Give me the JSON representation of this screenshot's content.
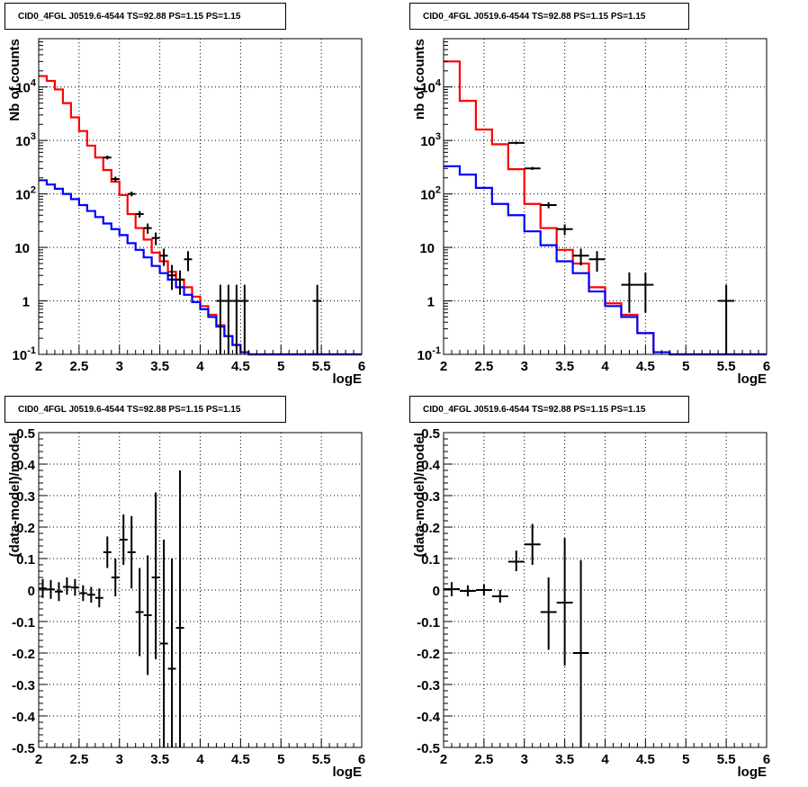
{
  "panels": [
    {
      "id": "tl",
      "title": "CID0_4FGL J0519.6-4544 TS=92.88 PS=1.15 PS=1.15"
    },
    {
      "id": "tr",
      "title": "CID0_4FGL J0519.6-4544 TS=92.88 PS=1.15 PS=1.15"
    },
    {
      "id": "bl",
      "title": "CID0_4FGL J0519.6-4544 TS=92.88 PS=1.15 PS=1.15"
    },
    {
      "id": "br",
      "title": "CID0_4FGL J0519.6-4544 TS=92.88 PS=1.15 PS=1.15"
    }
  ],
  "chart_data": [
    {
      "type": "line",
      "title": "CID0_4FGL J0519.6-4544 TS=92.88 PS=1.15 PS=1.15",
      "xlabel": "logE",
      "ylabel": "Nb of counts",
      "xlim": [
        2,
        6
      ],
      "ylim": [
        0.1,
        80000
      ],
      "yscale": "log",
      "grid": true,
      "xticks": [
        "2",
        "2.5",
        "3",
        "3.5",
        "4",
        "4.5",
        "5",
        "5.5",
        "6"
      ],
      "yticks": [
        "10^-1",
        "1",
        "10",
        "10^2",
        "10^3",
        "10^4"
      ],
      "bin_edges": [
        2.0,
        2.1,
        2.2,
        2.3,
        2.4,
        2.5,
        2.6,
        2.7,
        2.8,
        2.9,
        3.0,
        3.1,
        3.2,
        3.3,
        3.4,
        3.5,
        3.6,
        3.7,
        3.8,
        3.9,
        4.0,
        4.1,
        4.2,
        4.3,
        4.4,
        4.5,
        4.6,
        4.7,
        4.8,
        4.9,
        5.0,
        5.1,
        5.2,
        5.3,
        5.4,
        5.5,
        5.6,
        5.7,
        5.8,
        5.9,
        6.0
      ],
      "series": [
        {
          "color": "#ff0000",
          "values": [
            16000,
            13000,
            9000,
            5000,
            2700,
            1500,
            800,
            480,
            280,
            170,
            95,
            42,
            23,
            14,
            8,
            5.5,
            3.5,
            2.5,
            1.8,
            1.2,
            0.8,
            0.55,
            0.35,
            0.22,
            0.15,
            0.11,
            0.1,
            0.1,
            0.1,
            0.1,
            0.1,
            0.1,
            0.1,
            0.1,
            0.1,
            0.1,
            0.1,
            0.1,
            0.1,
            0.1
          ]
        },
        {
          "color": "#0000ff",
          "values": [
            180,
            150,
            125,
            100,
            80,
            62,
            48,
            37,
            28,
            22,
            17,
            12,
            9,
            6.5,
            4.5,
            3.3,
            2.5,
            1.8,
            1.3,
            0.95,
            0.7,
            0.5,
            0.33,
            0.22,
            0.15,
            0.11,
            0.1,
            0.1,
            0.1,
            0.1,
            0.1,
            0.1,
            0.1,
            0.1,
            0.1,
            0.1,
            0.1,
            0.1,
            0.1,
            0.1
          ]
        }
      ],
      "points": [
        {
          "x": 2.85,
          "y": 480,
          "ylo": 440,
          "yhi": 520,
          "xerr": 0.05
        },
        {
          "x": 2.95,
          "y": 190,
          "ylo": 170,
          "yhi": 210,
          "xerr": 0.05
        },
        {
          "x": 3.15,
          "y": 100,
          "ylo": 90,
          "yhi": 110,
          "xerr": 0.05
        },
        {
          "x": 3.25,
          "y": 42,
          "ylo": 36,
          "yhi": 48,
          "xerr": 0.05
        },
        {
          "x": 3.35,
          "y": 23,
          "ylo": 18,
          "yhi": 28,
          "xerr": 0.05
        },
        {
          "x": 3.45,
          "y": 15,
          "ylo": 11,
          "yhi": 19,
          "xerr": 0.05
        },
        {
          "x": 3.55,
          "y": 7,
          "ylo": 4.5,
          "yhi": 9.5,
          "xerr": 0.05
        },
        {
          "x": 3.65,
          "y": 3,
          "ylo": 1.6,
          "yhi": 4.7,
          "xerr": 0.05
        },
        {
          "x": 3.75,
          "y": 2.5,
          "ylo": 1.3,
          "yhi": 3.7,
          "xerr": 0.05
        },
        {
          "x": 3.85,
          "y": 6,
          "ylo": 3.6,
          "yhi": 8.5,
          "xerr": 0.05
        },
        {
          "x": 4.25,
          "y": 1,
          "ylo": 0.1,
          "yhi": 2.0,
          "xerr": 0.05
        },
        {
          "x": 4.35,
          "y": 1,
          "ylo": 0.1,
          "yhi": 2.0,
          "xerr": 0.05
        },
        {
          "x": 4.45,
          "y": 1,
          "ylo": 0.1,
          "yhi": 2.0,
          "xerr": 0.05
        },
        {
          "x": 4.55,
          "y": 1,
          "ylo": 0.1,
          "yhi": 2.0,
          "xerr": 0.05
        },
        {
          "x": 5.45,
          "y": 1,
          "ylo": 0.1,
          "yhi": 2.0,
          "xerr": 0.05
        }
      ]
    },
    {
      "type": "line",
      "title": "CID0_4FGL J0519.6-4544 TS=92.88 PS=1.15 PS=1.15",
      "xlabel": "logE",
      "ylabel": "nb of counts",
      "xlim": [
        2,
        6
      ],
      "ylim": [
        0.1,
        80000
      ],
      "yscale": "log",
      "grid": true,
      "xticks": [
        "2",
        "2.5",
        "3",
        "3.5",
        "4",
        "4.5",
        "5",
        "5.5",
        "6"
      ],
      "yticks": [
        "10^-1",
        "1",
        "10",
        "10^2",
        "10^3",
        "10^4"
      ],
      "bin_edges": [
        2.0,
        2.2,
        2.4,
        2.6,
        2.8,
        3.0,
        3.2,
        3.4,
        3.6,
        3.8,
        4.0,
        4.2,
        4.4,
        4.6,
        4.8,
        5.0,
        5.2,
        5.4,
        5.6,
        5.8,
        6.0
      ],
      "series": [
        {
          "color": "#ff0000",
          "values": [
            30000,
            5500,
            1600,
            850,
            290,
            65,
            23,
            9,
            5,
            1.8,
            0.9,
            0.55,
            0.25,
            0.11,
            0.1,
            0.1,
            0.1,
            0.1,
            0.1,
            0.1
          ]
        },
        {
          "color": "#0000ff",
          "values": [
            330,
            230,
            130,
            65,
            40,
            20,
            11,
            5.5,
            3.3,
            1.5,
            0.8,
            0.5,
            0.25,
            0.11,
            0.1,
            0.1,
            0.1,
            0.1,
            0.1,
            0.1
          ]
        }
      ],
      "points": [
        {
          "x": 2.9,
          "y": 900,
          "ylo": 850,
          "yhi": 950,
          "xerr": 0.1
        },
        {
          "x": 3.1,
          "y": 300,
          "ylo": 280,
          "yhi": 320,
          "xerr": 0.1
        },
        {
          "x": 3.3,
          "y": 62,
          "ylo": 54,
          "yhi": 70,
          "xerr": 0.1
        },
        {
          "x": 3.5,
          "y": 22,
          "ylo": 17,
          "yhi": 27,
          "xerr": 0.1
        },
        {
          "x": 3.7,
          "y": 7,
          "ylo": 4.6,
          "yhi": 9.5,
          "xerr": 0.1
        },
        {
          "x": 3.9,
          "y": 6,
          "ylo": 3.5,
          "yhi": 8.5,
          "xerr": 0.1
        },
        {
          "x": 4.3,
          "y": 2,
          "ylo": 0.6,
          "yhi": 3.4,
          "xerr": 0.1
        },
        {
          "x": 4.5,
          "y": 2,
          "ylo": 0.6,
          "yhi": 3.4,
          "xerr": 0.1
        },
        {
          "x": 5.5,
          "y": 1,
          "ylo": 0.1,
          "yhi": 2.0,
          "xerr": 0.1
        }
      ]
    },
    {
      "type": "scatter",
      "title": "CID0_4FGL J0519.6-4544 TS=92.88 PS=1.15 PS=1.15",
      "xlabel": "logE",
      "ylabel": "(data-model)/model",
      "xlim": [
        2,
        6
      ],
      "ylim": [
        -0.5,
        0.5
      ],
      "grid": true,
      "xticks": [
        "2",
        "2.5",
        "3",
        "3.5",
        "4",
        "4.5",
        "5",
        "5.5",
        "6"
      ],
      "yticks": [
        "-0.5",
        "-0.4",
        "-0.3",
        "-0.2",
        "-0.1",
        "0",
        "0.1",
        "0.2",
        "0.3",
        "0.4",
        "0.5"
      ],
      "points": [
        {
          "x": 2.05,
          "y": 0.005,
          "ylo": -0.025,
          "yhi": 0.035,
          "xerr": 0.05
        },
        {
          "x": 2.15,
          "y": 0.002,
          "ylo": -0.028,
          "yhi": 0.032,
          "xerr": 0.05
        },
        {
          "x": 2.25,
          "y": -0.005,
          "ylo": -0.035,
          "yhi": 0.025,
          "xerr": 0.05
        },
        {
          "x": 2.35,
          "y": 0.01,
          "ylo": -0.015,
          "yhi": 0.04,
          "xerr": 0.05
        },
        {
          "x": 2.45,
          "y": 0.008,
          "ylo": -0.018,
          "yhi": 0.035,
          "xerr": 0.05
        },
        {
          "x": 2.55,
          "y": -0.01,
          "ylo": -0.035,
          "yhi": 0.015,
          "xerr": 0.05
        },
        {
          "x": 2.65,
          "y": -0.015,
          "ylo": -0.04,
          "yhi": 0.01,
          "xerr": 0.05
        },
        {
          "x": 2.75,
          "y": -0.025,
          "ylo": -0.055,
          "yhi": 0.005,
          "xerr": 0.05
        },
        {
          "x": 2.85,
          "y": 0.12,
          "ylo": 0.07,
          "yhi": 0.17,
          "xerr": 0.05
        },
        {
          "x": 2.95,
          "y": 0.04,
          "ylo": -0.02,
          "yhi": 0.1,
          "xerr": 0.05
        },
        {
          "x": 3.05,
          "y": 0.16,
          "ylo": 0.08,
          "yhi": 0.24,
          "xerr": 0.05
        },
        {
          "x": 3.15,
          "y": 0.12,
          "ylo": 0.005,
          "yhi": 0.235,
          "xerr": 0.05
        },
        {
          "x": 3.25,
          "y": -0.07,
          "ylo": -0.21,
          "yhi": 0.07,
          "xerr": 0.05
        },
        {
          "x": 3.35,
          "y": -0.08,
          "ylo": -0.27,
          "yhi": 0.11,
          "xerr": 0.05
        },
        {
          "x": 3.45,
          "y": 0.04,
          "ylo": -0.22,
          "yhi": 0.31,
          "xerr": 0.05
        },
        {
          "x": 3.55,
          "y": -0.17,
          "ylo": -0.5,
          "yhi": 0.16,
          "xerr": 0.05
        },
        {
          "x": 3.65,
          "y": -0.25,
          "ylo": -0.5,
          "yhi": 0.1,
          "xerr": 0.05
        },
        {
          "x": 3.75,
          "y": -0.12,
          "ylo": -0.5,
          "yhi": 0.38,
          "xerr": 0.05
        }
      ]
    },
    {
      "type": "scatter",
      "title": "CID0_4FGL J0519.6-4544 TS=92.88 PS=1.15 PS=1.15",
      "xlabel": "logE",
      "ylabel": "(data-model)/model",
      "xlim": [
        2,
        6
      ],
      "ylim": [
        -0.5,
        0.5
      ],
      "grid": true,
      "xticks": [
        "2",
        "2.5",
        "3",
        "3.5",
        "4",
        "4.5",
        "5",
        "5.5",
        "6"
      ],
      "yticks": [
        "-0.5",
        "-0.4",
        "-0.3",
        "-0.2",
        "-0.1",
        "0",
        "0.1",
        "0.2",
        "0.3",
        "0.4",
        "0.5"
      ],
      "points": [
        {
          "x": 2.1,
          "y": 0.003,
          "ylo": -0.02,
          "yhi": 0.025,
          "xerr": 0.1
        },
        {
          "x": 2.3,
          "y": -0.003,
          "ylo": -0.02,
          "yhi": 0.015,
          "xerr": 0.1
        },
        {
          "x": 2.5,
          "y": 0.0,
          "ylo": -0.018,
          "yhi": 0.018,
          "xerr": 0.1
        },
        {
          "x": 2.7,
          "y": -0.02,
          "ylo": -0.04,
          "yhi": 0.0,
          "xerr": 0.1
        },
        {
          "x": 2.9,
          "y": 0.09,
          "ylo": 0.06,
          "yhi": 0.125,
          "xerr": 0.1
        },
        {
          "x": 3.1,
          "y": 0.145,
          "ylo": 0.08,
          "yhi": 0.21,
          "xerr": 0.1
        },
        {
          "x": 3.3,
          "y": -0.07,
          "ylo": -0.19,
          "yhi": 0.04,
          "xerr": 0.1
        },
        {
          "x": 3.5,
          "y": -0.04,
          "ylo": -0.24,
          "yhi": 0.165,
          "xerr": 0.1
        },
        {
          "x": 3.7,
          "y": -0.2,
          "ylo": -0.5,
          "yhi": 0.095,
          "xerr": 0.1
        }
      ]
    }
  ]
}
